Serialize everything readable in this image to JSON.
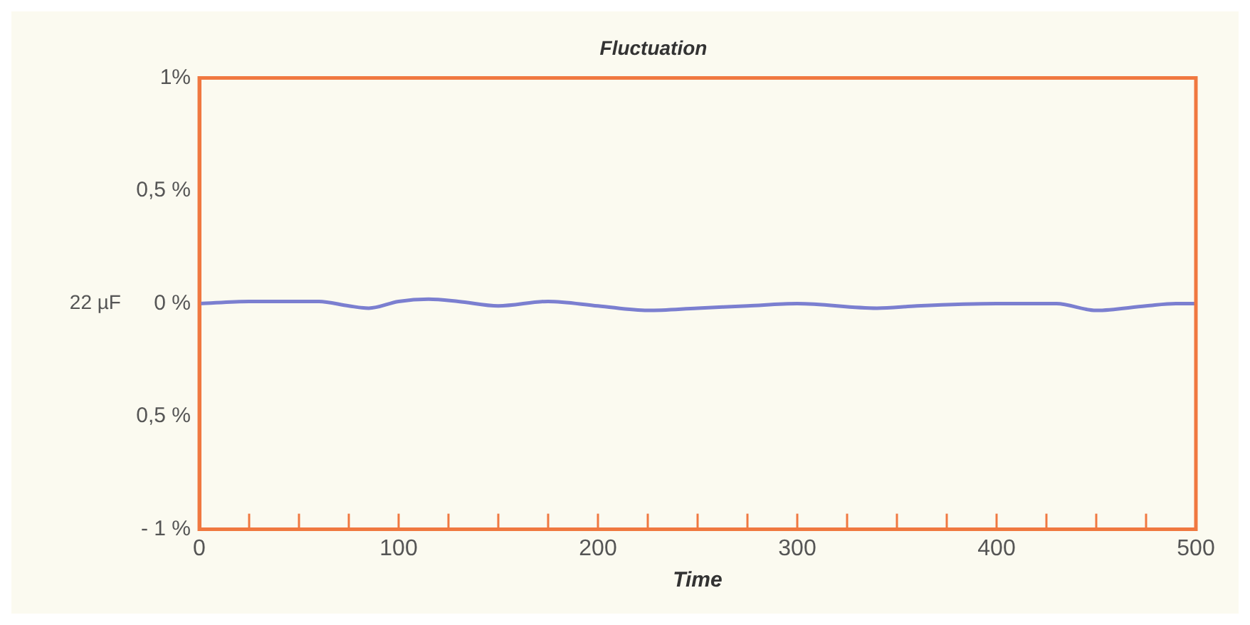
{
  "chart_data": {
    "type": "line",
    "title": "Fluctuation",
    "xlabel": "Time",
    "x": [
      0,
      25,
      50,
      60,
      75,
      85,
      100,
      115,
      130,
      150,
      175,
      200,
      225,
      250,
      275,
      300,
      340,
      360,
      400,
      430,
      450,
      475,
      490,
      500
    ],
    "series": [
      {
        "name": "22 µF",
        "color": "#7b7fd0",
        "values": [
          0,
          0.01,
          0.01,
          0.01,
          -0.01,
          -0.02,
          0.01,
          0.02,
          0.01,
          -0.01,
          0.01,
          -0.01,
          -0.03,
          -0.02,
          -0.01,
          0,
          -0.02,
          -0.01,
          0,
          0,
          -0.03,
          -0.01,
          0,
          0
        ]
      }
    ],
    "xlim": [
      0,
      500
    ],
    "xticks": [
      0,
      {
        "value": 25,
        "label": null
      },
      {
        "value": 50,
        "label": null
      },
      {
        "value": 75,
        "label": null
      },
      100,
      {
        "value": 125,
        "label": null
      },
      {
        "value": 150,
        "label": null
      },
      {
        "value": 175,
        "label": null
      },
      200,
      {
        "value": 225,
        "label": null
      },
      {
        "value": 250,
        "label": null
      },
      {
        "value": 275,
        "label": null
      },
      300,
      {
        "value": 325,
        "label": null
      },
      {
        "value": 350,
        "label": null
      },
      {
        "value": 375,
        "label": null
      },
      400,
      {
        "value": 425,
        "label": null
      },
      {
        "value": 450,
        "label": null
      },
      {
        "value": 475,
        "label": null
      },
      500
    ],
    "ylim": [
      -1,
      1
    ],
    "yticks": [
      {
        "value": -1,
        "label": "- 1 %"
      },
      {
        "value": -0.5,
        "label": "0,5 %"
      },
      {
        "value": 0,
        "label": "0 %"
      },
      {
        "value": 0.5,
        "label": "0,5 %"
      },
      {
        "value": 1,
        "label": "1%"
      }
    ],
    "grid": false,
    "legend": false,
    "marker": "none",
    "line_style": "solid"
  }
}
